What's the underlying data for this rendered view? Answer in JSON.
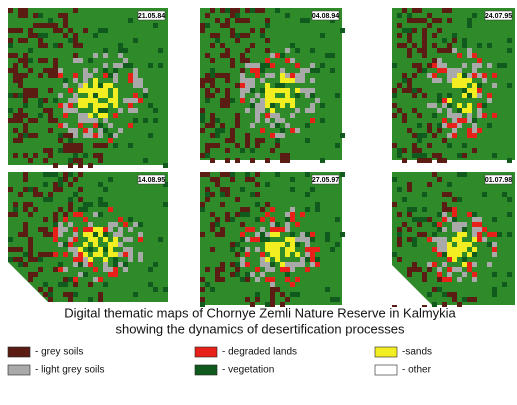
{
  "maps": [
    {
      "date": "21.05.84"
    },
    {
      "date": "04.08.94"
    },
    {
      "date": "24.07.95"
    },
    {
      "date": "14.08.95"
    },
    {
      "date": "27.05.97"
    },
    {
      "date": "01.07.98"
    }
  ],
  "caption": [
    "Digital thematic maps of Chornye Zemli Nature Reserve in Kalmykia",
    "showing the dynamics of desertification processes"
  ],
  "legend": [
    {
      "label": "- grey soils",
      "color": "#5b1c14"
    },
    {
      "label": "- degraded lands",
      "color": "#e8201a"
    },
    {
      "label": "-sands",
      "color": "#f2ee22"
    },
    {
      "label": "- light grey soils",
      "color": "#a9a9a9"
    },
    {
      "label": "- vegetation",
      "color": "#0f5a1c"
    },
    {
      "label": "- other",
      "color": "#ffffff"
    }
  ]
}
